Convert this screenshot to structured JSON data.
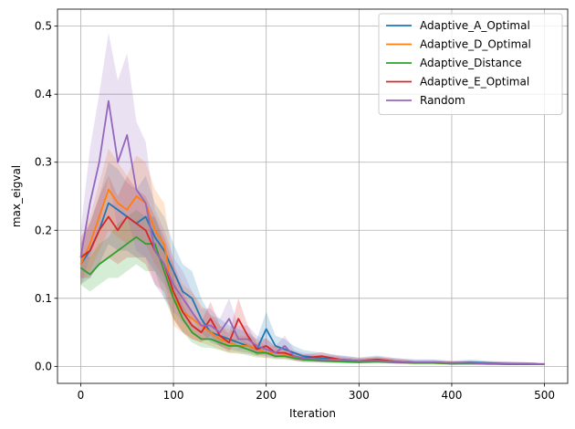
{
  "chart_data": {
    "type": "line",
    "xlabel": "Iteration",
    "ylabel": "max_eigval",
    "xlim": [
      -25,
      525
    ],
    "ylim": [
      -0.025,
      0.525
    ],
    "xticks": [
      0,
      100,
      200,
      300,
      400,
      500
    ],
    "yticks": [
      0.0,
      0.1,
      0.2,
      0.3,
      0.4,
      0.5
    ],
    "xtick_labels": [
      "0",
      "100",
      "200",
      "300",
      "400",
      "500"
    ],
    "ytick_labels": [
      "0.0",
      "0.1",
      "0.2",
      "0.3",
      "0.4",
      "0.5"
    ],
    "grid": true,
    "legend_position": "top-right",
    "series": [
      {
        "name": "Adaptive_A_Optimal",
        "color": "#1f77b4",
        "x": [
          0,
          10,
          20,
          30,
          40,
          50,
          60,
          70,
          80,
          90,
          100,
          110,
          120,
          130,
          140,
          150,
          160,
          170,
          180,
          190,
          200,
          210,
          220,
          230,
          240,
          260,
          280,
          300,
          320,
          340,
          360,
          380,
          400,
          420,
          440,
          460,
          480,
          500
        ],
        "y": [
          0.15,
          0.17,
          0.2,
          0.24,
          0.23,
          0.22,
          0.21,
          0.22,
          0.19,
          0.17,
          0.14,
          0.11,
          0.1,
          0.07,
          0.05,
          0.045,
          0.04,
          0.035,
          0.03,
          0.025,
          0.055,
          0.03,
          0.025,
          0.02,
          0.015,
          0.012,
          0.01,
          0.008,
          0.01,
          0.007,
          0.006,
          0.006,
          0.005,
          0.006,
          0.005,
          0.004,
          0.004,
          0.003
        ],
        "lower": [
          0.12,
          0.13,
          0.15,
          0.18,
          0.17,
          0.17,
          0.16,
          0.16,
          0.14,
          0.12,
          0.1,
          0.08,
          0.07,
          0.05,
          0.035,
          0.03,
          0.025,
          0.022,
          0.02,
          0.016,
          0.025,
          0.02,
          0.016,
          0.012,
          0.009,
          0.007,
          0.006,
          0.005,
          0.006,
          0.004,
          0.004,
          0.004,
          0.003,
          0.003,
          0.003,
          0.002,
          0.002,
          0.002
        ],
        "upper": [
          0.18,
          0.21,
          0.25,
          0.3,
          0.29,
          0.27,
          0.26,
          0.28,
          0.24,
          0.22,
          0.18,
          0.15,
          0.14,
          0.1,
          0.075,
          0.07,
          0.06,
          0.055,
          0.05,
          0.04,
          0.08,
          0.045,
          0.04,
          0.03,
          0.024,
          0.02,
          0.016,
          0.013,
          0.016,
          0.012,
          0.01,
          0.01,
          0.008,
          0.01,
          0.008,
          0.007,
          0.006,
          0.005
        ]
      },
      {
        "name": "Adaptive_D_Optimal",
        "color": "#ff7f0e",
        "x": [
          0,
          10,
          20,
          30,
          40,
          50,
          60,
          70,
          80,
          90,
          100,
          110,
          120,
          130,
          140,
          150,
          160,
          170,
          180,
          190,
          200,
          210,
          220,
          230,
          240,
          260,
          280,
          300,
          320,
          340,
          360,
          380,
          400,
          420,
          440,
          460,
          480,
          500
        ],
        "y": [
          0.15,
          0.18,
          0.22,
          0.26,
          0.24,
          0.23,
          0.25,
          0.24,
          0.2,
          0.18,
          0.1,
          0.08,
          0.07,
          0.06,
          0.05,
          0.04,
          0.035,
          0.03,
          0.03,
          0.025,
          0.02,
          0.02,
          0.018,
          0.015,
          0.012,
          0.01,
          0.008,
          0.008,
          0.009,
          0.007,
          0.005,
          0.005,
          0.004,
          0.005,
          0.004,
          0.004,
          0.003,
          0.003
        ],
        "lower": [
          0.12,
          0.14,
          0.17,
          0.2,
          0.19,
          0.18,
          0.19,
          0.18,
          0.15,
          0.13,
          0.06,
          0.05,
          0.04,
          0.035,
          0.03,
          0.025,
          0.02,
          0.018,
          0.018,
          0.015,
          0.012,
          0.012,
          0.011,
          0.009,
          0.007,
          0.006,
          0.005,
          0.005,
          0.005,
          0.004,
          0.003,
          0.003,
          0.002,
          0.003,
          0.002,
          0.002,
          0.002,
          0.002
        ],
        "upper": [
          0.18,
          0.22,
          0.27,
          0.32,
          0.3,
          0.28,
          0.31,
          0.3,
          0.26,
          0.24,
          0.15,
          0.12,
          0.11,
          0.09,
          0.075,
          0.06,
          0.055,
          0.045,
          0.045,
          0.04,
          0.03,
          0.03,
          0.027,
          0.022,
          0.018,
          0.015,
          0.012,
          0.012,
          0.014,
          0.011,
          0.008,
          0.008,
          0.007,
          0.008,
          0.007,
          0.006,
          0.005,
          0.005
        ]
      },
      {
        "name": "Adaptive_Distance",
        "color": "#2ca02c",
        "x": [
          0,
          10,
          20,
          30,
          40,
          50,
          60,
          70,
          80,
          90,
          100,
          110,
          120,
          130,
          140,
          150,
          160,
          170,
          180,
          190,
          200,
          210,
          220,
          230,
          240,
          260,
          280,
          300,
          320,
          340,
          360,
          380,
          400,
          420,
          440,
          460,
          480,
          500
        ],
        "y": [
          0.145,
          0.135,
          0.15,
          0.16,
          0.17,
          0.18,
          0.19,
          0.18,
          0.18,
          0.14,
          0.1,
          0.07,
          0.05,
          0.04,
          0.04,
          0.035,
          0.03,
          0.03,
          0.025,
          0.02,
          0.02,
          0.015,
          0.015,
          0.012,
          0.01,
          0.008,
          0.007,
          0.006,
          0.007,
          0.006,
          0.005,
          0.005,
          0.004,
          0.004,
          0.004,
          0.003,
          0.003,
          0.003
        ],
        "lower": [
          0.12,
          0.11,
          0.12,
          0.13,
          0.13,
          0.14,
          0.15,
          0.14,
          0.14,
          0.1,
          0.07,
          0.05,
          0.035,
          0.028,
          0.027,
          0.024,
          0.02,
          0.02,
          0.016,
          0.013,
          0.013,
          0.01,
          0.01,
          0.008,
          0.006,
          0.005,
          0.004,
          0.004,
          0.004,
          0.004,
          0.003,
          0.003,
          0.002,
          0.002,
          0.002,
          0.002,
          0.002,
          0.002
        ],
        "upper": [
          0.17,
          0.16,
          0.18,
          0.19,
          0.21,
          0.22,
          0.23,
          0.22,
          0.22,
          0.18,
          0.13,
          0.09,
          0.065,
          0.052,
          0.053,
          0.046,
          0.04,
          0.04,
          0.034,
          0.027,
          0.027,
          0.02,
          0.02,
          0.016,
          0.014,
          0.011,
          0.01,
          0.008,
          0.01,
          0.008,
          0.007,
          0.007,
          0.006,
          0.006,
          0.006,
          0.004,
          0.004,
          0.004
        ]
      },
      {
        "name": "Adaptive_E_Optimal",
        "color": "#d62728",
        "x": [
          0,
          10,
          20,
          30,
          40,
          50,
          60,
          70,
          80,
          90,
          100,
          110,
          120,
          130,
          140,
          150,
          160,
          170,
          180,
          190,
          200,
          210,
          220,
          230,
          240,
          260,
          280,
          300,
          320,
          340,
          360,
          380,
          400,
          420,
          440,
          460,
          480,
          500
        ],
        "y": [
          0.16,
          0.17,
          0.2,
          0.22,
          0.2,
          0.22,
          0.21,
          0.2,
          0.17,
          0.15,
          0.11,
          0.08,
          0.06,
          0.05,
          0.07,
          0.045,
          0.035,
          0.07,
          0.045,
          0.025,
          0.03,
          0.02,
          0.02,
          0.015,
          0.012,
          0.015,
          0.01,
          0.008,
          0.01,
          0.007,
          0.006,
          0.006,
          0.005,
          0.005,
          0.004,
          0.004,
          0.004,
          0.003
        ],
        "lower": [
          0.13,
          0.13,
          0.15,
          0.16,
          0.15,
          0.16,
          0.16,
          0.15,
          0.12,
          0.11,
          0.07,
          0.05,
          0.04,
          0.035,
          0.045,
          0.03,
          0.022,
          0.04,
          0.03,
          0.016,
          0.018,
          0.012,
          0.012,
          0.009,
          0.007,
          0.009,
          0.006,
          0.005,
          0.006,
          0.004,
          0.004,
          0.004,
          0.003,
          0.003,
          0.002,
          0.002,
          0.002,
          0.002
        ],
        "upper": [
          0.19,
          0.21,
          0.25,
          0.28,
          0.25,
          0.28,
          0.26,
          0.25,
          0.22,
          0.19,
          0.15,
          0.11,
          0.08,
          0.065,
          0.095,
          0.06,
          0.048,
          0.1,
          0.06,
          0.034,
          0.042,
          0.028,
          0.028,
          0.021,
          0.017,
          0.021,
          0.014,
          0.011,
          0.014,
          0.01,
          0.008,
          0.008,
          0.007,
          0.007,
          0.006,
          0.006,
          0.006,
          0.004
        ]
      },
      {
        "name": "Random",
        "color": "#9467bd",
        "x": [
          0,
          10,
          20,
          30,
          40,
          50,
          60,
          70,
          80,
          90,
          100,
          110,
          120,
          130,
          140,
          150,
          160,
          170,
          180,
          190,
          200,
          210,
          220,
          230,
          240,
          260,
          280,
          300,
          320,
          340,
          360,
          380,
          400,
          420,
          440,
          460,
          480,
          500
        ],
        "y": [
          0.16,
          0.24,
          0.3,
          0.39,
          0.3,
          0.34,
          0.26,
          0.24,
          0.17,
          0.15,
          0.12,
          0.1,
          0.08,
          0.06,
          0.06,
          0.05,
          0.07,
          0.04,
          0.04,
          0.03,
          0.025,
          0.02,
          0.03,
          0.015,
          0.012,
          0.01,
          0.01,
          0.008,
          0.008,
          0.007,
          0.006,
          0.006,
          0.005,
          0.005,
          0.004,
          0.004,
          0.004,
          0.003
        ],
        "lower": [
          0.12,
          0.16,
          0.2,
          0.28,
          0.2,
          0.22,
          0.17,
          0.16,
          0.12,
          0.1,
          0.08,
          0.065,
          0.05,
          0.04,
          0.04,
          0.03,
          0.045,
          0.025,
          0.025,
          0.018,
          0.015,
          0.012,
          0.018,
          0.009,
          0.007,
          0.006,
          0.006,
          0.005,
          0.005,
          0.004,
          0.004,
          0.004,
          0.003,
          0.003,
          0.002,
          0.002,
          0.002,
          0.002
        ],
        "upper": [
          0.2,
          0.32,
          0.4,
          0.49,
          0.42,
          0.46,
          0.36,
          0.33,
          0.23,
          0.2,
          0.16,
          0.14,
          0.11,
          0.085,
          0.085,
          0.07,
          0.1,
          0.06,
          0.06,
          0.045,
          0.04,
          0.03,
          0.045,
          0.024,
          0.02,
          0.016,
          0.016,
          0.013,
          0.013,
          0.012,
          0.01,
          0.01,
          0.008,
          0.008,
          0.007,
          0.007,
          0.006,
          0.005
        ]
      }
    ]
  }
}
